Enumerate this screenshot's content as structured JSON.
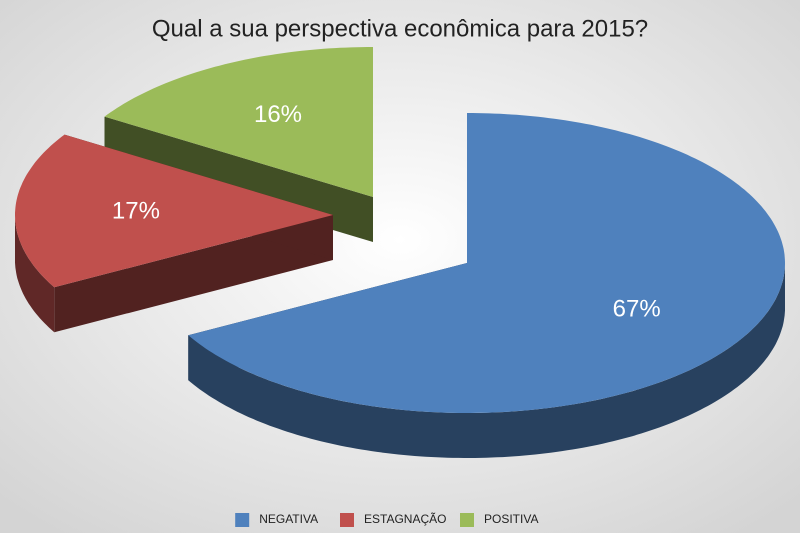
{
  "chart_data": {
    "type": "pie3d",
    "title": "Qual a sua perspectiva econômica para 2015?",
    "categories": [
      "NEGATIVA",
      "ESTAGNAÇÃO",
      "POSITIVA"
    ],
    "values": [
      67,
      17,
      16
    ],
    "value_labels": [
      "67%",
      "17%",
      "16%"
    ],
    "colors": [
      "#4f81bd",
      "#c0504d",
      "#9bbb59"
    ],
    "legend": "bottom"
  }
}
